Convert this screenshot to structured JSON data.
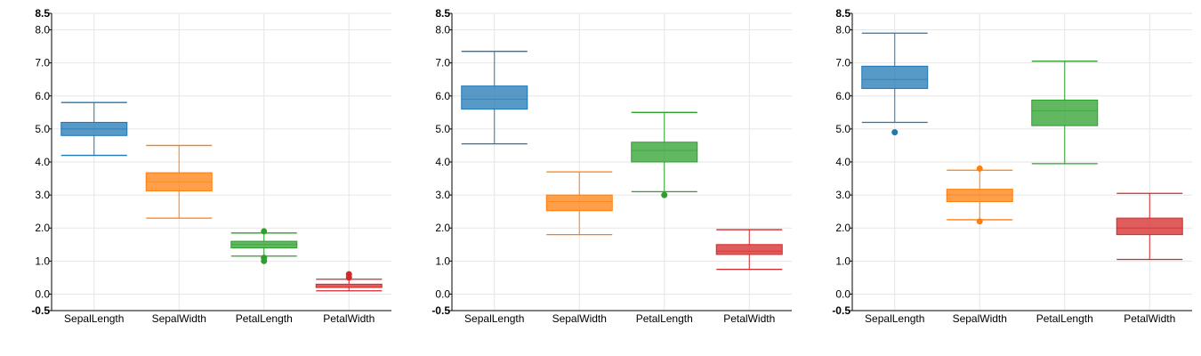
{
  "chart_data": [
    {
      "type": "box",
      "categories": [
        "SepalLength",
        "SepalWidth",
        "PetalLength",
        "PetalWidth"
      ],
      "ylim": [
        -0.5,
        8.5
      ],
      "yticks": [
        "-0.5",
        "0.0",
        "1.0",
        "2.0",
        "3.0",
        "4.0",
        "5.0",
        "6.0",
        "7.0",
        "8.0",
        "8.5"
      ],
      "grid": true,
      "boxes": [
        {
          "min": 4.2,
          "q1": 4.8,
          "median": 5.0,
          "q3": 5.2,
          "max": 5.8,
          "outliers": []
        },
        {
          "min": 2.3,
          "q1": 3.125,
          "median": 3.4,
          "q3": 3.675,
          "max": 4.5,
          "outliers": []
        },
        {
          "min": 1.15,
          "q1": 1.4,
          "median": 1.5,
          "q3": 1.6,
          "max": 1.85,
          "outliers": [
            1.9,
            1.1,
            1.0
          ]
        },
        {
          "min": 0.1,
          "q1": 0.2,
          "median": 0.2,
          "q3": 0.3,
          "max": 0.45,
          "outliers": [
            0.6,
            0.5
          ]
        }
      ]
    },
    {
      "type": "box",
      "categories": [
        "SepalLength",
        "SepalWidth",
        "PetalLength",
        "PetalWidth"
      ],
      "ylim": [
        -0.5,
        8.5
      ],
      "yticks": [
        "-0.5",
        "0.0",
        "1.0",
        "2.0",
        "3.0",
        "4.0",
        "5.0",
        "6.0",
        "7.0",
        "8.0",
        "8.5"
      ],
      "grid": true,
      "boxes": [
        {
          "min": 4.55,
          "q1": 5.6,
          "median": 5.9,
          "q3": 6.3,
          "max": 7.35,
          "outliers": []
        },
        {
          "min": 1.8,
          "q1": 2.525,
          "median": 2.8,
          "q3": 3.0,
          "max": 3.7,
          "outliers": []
        },
        {
          "min": 3.1,
          "q1": 4.0,
          "median": 4.35,
          "q3": 4.6,
          "max": 5.5,
          "outliers": [
            3.0
          ]
        },
        {
          "min": 0.75,
          "q1": 1.2,
          "median": 1.3,
          "q3": 1.5,
          "max": 1.95,
          "outliers": []
        }
      ]
    },
    {
      "type": "box",
      "categories": [
        "SepalLength",
        "SepalWidth",
        "PetalLength",
        "PetalWidth"
      ],
      "ylim": [
        -0.5,
        8.5
      ],
      "yticks": [
        "-0.5",
        "0.0",
        "1.0",
        "2.0",
        "3.0",
        "4.0",
        "5.0",
        "6.0",
        "7.0",
        "8.0",
        "8.5"
      ],
      "grid": true,
      "boxes": [
        {
          "min": 5.2,
          "q1": 6.225,
          "median": 6.5,
          "q3": 6.9,
          "max": 7.9,
          "outliers": [
            4.9
          ]
        },
        {
          "min": 2.25,
          "q1": 2.8,
          "median": 3.0,
          "q3": 3.175,
          "max": 3.75,
          "outliers": [
            3.8,
            2.2
          ]
        },
        {
          "min": 3.95,
          "q1": 5.1,
          "median": 5.55,
          "q3": 5.875,
          "max": 7.05,
          "outliers": []
        },
        {
          "min": 1.05,
          "q1": 1.8,
          "median": 2.0,
          "q3": 2.3,
          "max": 3.05,
          "outliers": []
        }
      ]
    }
  ],
  "colors": [
    "#1f77b4",
    "#ff7f0e",
    "#2ca02c",
    "#d62728"
  ]
}
